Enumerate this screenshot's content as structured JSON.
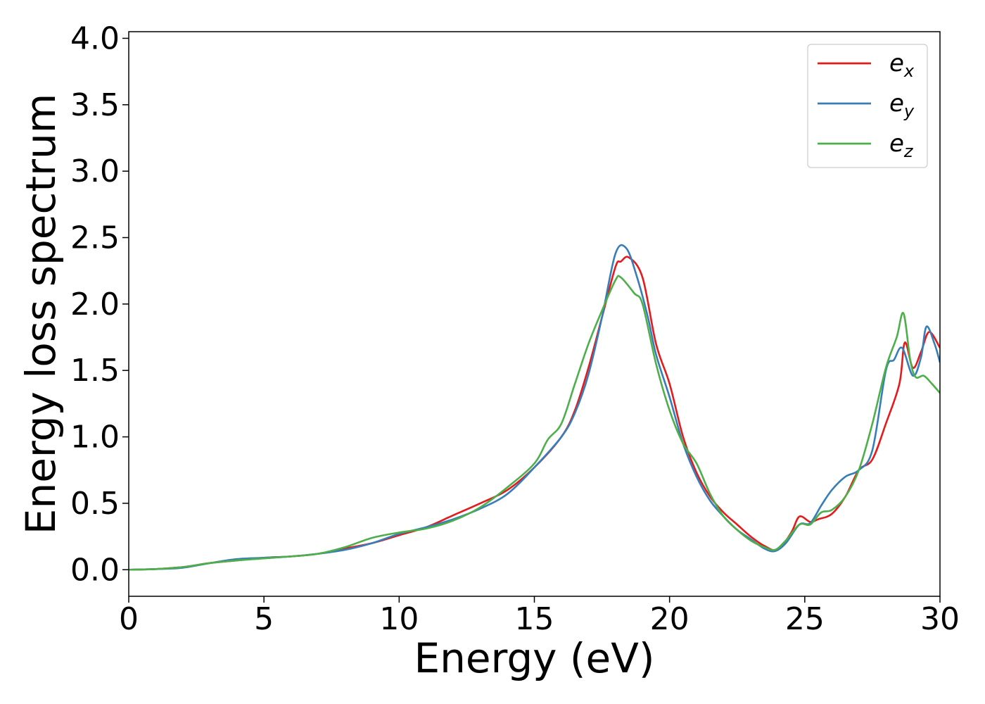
{
  "chart_data": {
    "type": "line",
    "xlabel": "Energy (eV)",
    "ylabel": "Energy loss spectrum",
    "xlim": [
      0,
      30
    ],
    "ylim": [
      -0.2,
      4.05
    ],
    "xticks": [
      0,
      5,
      10,
      15,
      20,
      25,
      30
    ],
    "yticks": [
      0.0,
      0.5,
      1.0,
      1.5,
      2.0,
      2.5,
      3.0,
      3.5,
      4.0
    ],
    "xtick_labels": [
      "0",
      "5",
      "10",
      "15",
      "20",
      "25",
      "30"
    ],
    "ytick_labels": [
      "0.0",
      "0.5",
      "1.0",
      "1.5",
      "2.0",
      "2.5",
      "3.0",
      "3.5",
      "4.0"
    ],
    "grid": false,
    "legend_position": "top-right",
    "series": [
      {
        "name": "e",
        "subscript": "x",
        "color": "#e41a1c",
        "points": [
          [
            0,
            0
          ],
          [
            1,
            0.005
          ],
          [
            2,
            0.02
          ],
          [
            3,
            0.05
          ],
          [
            4,
            0.07
          ],
          [
            5,
            0.09
          ],
          [
            6,
            0.1
          ],
          [
            7,
            0.12
          ],
          [
            8,
            0.16
          ],
          [
            9,
            0.2
          ],
          [
            10,
            0.26
          ],
          [
            11,
            0.32
          ],
          [
            12,
            0.41
          ],
          [
            13,
            0.5
          ],
          [
            14,
            0.6
          ],
          [
            15,
            0.77
          ],
          [
            16,
            1.0
          ],
          [
            16.5,
            1.2
          ],
          [
            17,
            1.52
          ],
          [
            17.5,
            1.9
          ],
          [
            18,
            2.28
          ],
          [
            18.2,
            2.32
          ],
          [
            18.5,
            2.35
          ],
          [
            19,
            2.2
          ],
          [
            19.5,
            1.7
          ],
          [
            20,
            1.4
          ],
          [
            20.5,
            1.0
          ],
          [
            21,
            0.73
          ],
          [
            21.5,
            0.55
          ],
          [
            22,
            0.43
          ],
          [
            22.5,
            0.34
          ],
          [
            23,
            0.25
          ],
          [
            23.5,
            0.18
          ],
          [
            24,
            0.15
          ],
          [
            24.5,
            0.28
          ],
          [
            24.8,
            0.4
          ],
          [
            25.2,
            0.36
          ],
          [
            25.5,
            0.38
          ],
          [
            26,
            0.42
          ],
          [
            26.5,
            0.55
          ],
          [
            27,
            0.75
          ],
          [
            27.5,
            0.83
          ],
          [
            28,
            1.1
          ],
          [
            28.5,
            1.4
          ],
          [
            28.7,
            1.71
          ],
          [
            29,
            1.52
          ],
          [
            29.3,
            1.64
          ],
          [
            29.6,
            1.79
          ],
          [
            30,
            1.67
          ]
        ]
      },
      {
        "name": "e",
        "subscript": "y",
        "color": "#377eb8",
        "points": [
          [
            0,
            0
          ],
          [
            1,
            0.005
          ],
          [
            2,
            0.015
          ],
          [
            3,
            0.05
          ],
          [
            4,
            0.08
          ],
          [
            5,
            0.09
          ],
          [
            6,
            0.1
          ],
          [
            7,
            0.12
          ],
          [
            8,
            0.15
          ],
          [
            9,
            0.2
          ],
          [
            10,
            0.27
          ],
          [
            11,
            0.32
          ],
          [
            12,
            0.38
          ],
          [
            13,
            0.46
          ],
          [
            14,
            0.57
          ],
          [
            15,
            0.77
          ],
          [
            16,
            1.0
          ],
          [
            16.5,
            1.18
          ],
          [
            17,
            1.47
          ],
          [
            17.5,
            1.9
          ],
          [
            18,
            2.38
          ],
          [
            18.4,
            2.42
          ],
          [
            18.8,
            2.2
          ],
          [
            19.2,
            1.9
          ],
          [
            19.5,
            1.62
          ],
          [
            20,
            1.3
          ],
          [
            20.5,
            0.95
          ],
          [
            21,
            0.7
          ],
          [
            21.5,
            0.52
          ],
          [
            22,
            0.4
          ],
          [
            22.5,
            0.3
          ],
          [
            23,
            0.23
          ],
          [
            23.5,
            0.16
          ],
          [
            23.9,
            0.14
          ],
          [
            24.3,
            0.2
          ],
          [
            24.8,
            0.34
          ],
          [
            25.2,
            0.35
          ],
          [
            25.6,
            0.48
          ],
          [
            26,
            0.6
          ],
          [
            26.5,
            0.7
          ],
          [
            27,
            0.75
          ],
          [
            27.5,
            0.9
          ],
          [
            28,
            1.5
          ],
          [
            28.3,
            1.58
          ],
          [
            28.6,
            1.67
          ],
          [
            29,
            1.46
          ],
          [
            29.3,
            1.6
          ],
          [
            29.5,
            1.83
          ],
          [
            29.8,
            1.7
          ],
          [
            30,
            1.56
          ]
        ]
      },
      {
        "name": "e",
        "subscript": "z",
        "color": "#4daf4a",
        "points": [
          [
            0,
            0
          ],
          [
            1,
            0.005
          ],
          [
            2,
            0.02
          ],
          [
            3,
            0.05
          ],
          [
            4,
            0.07
          ],
          [
            5,
            0.085
          ],
          [
            6,
            0.1
          ],
          [
            7,
            0.12
          ],
          [
            8,
            0.17
          ],
          [
            9,
            0.24
          ],
          [
            10,
            0.28
          ],
          [
            11,
            0.31
          ],
          [
            12,
            0.37
          ],
          [
            13,
            0.47
          ],
          [
            14,
            0.62
          ],
          [
            15,
            0.8
          ],
          [
            15.5,
            0.98
          ],
          [
            16,
            1.1
          ],
          [
            16.5,
            1.4
          ],
          [
            17,
            1.7
          ],
          [
            17.5,
            1.95
          ],
          [
            18,
            2.18
          ],
          [
            18.2,
            2.2
          ],
          [
            18.7,
            2.08
          ],
          [
            19,
            2.0
          ],
          [
            19.5,
            1.55
          ],
          [
            20,
            1.2
          ],
          [
            20.5,
            0.95
          ],
          [
            21,
            0.8
          ],
          [
            21.5,
            0.57
          ],
          [
            22,
            0.4
          ],
          [
            22.5,
            0.3
          ],
          [
            23,
            0.22
          ],
          [
            23.5,
            0.17
          ],
          [
            23.9,
            0.15
          ],
          [
            24.3,
            0.22
          ],
          [
            24.8,
            0.34
          ],
          [
            25.2,
            0.34
          ],
          [
            25.6,
            0.43
          ],
          [
            26,
            0.45
          ],
          [
            26.5,
            0.55
          ],
          [
            27,
            0.75
          ],
          [
            27.5,
            1.1
          ],
          [
            28,
            1.52
          ],
          [
            28.4,
            1.75
          ],
          [
            28.65,
            1.93
          ],
          [
            28.9,
            1.58
          ],
          [
            29.1,
            1.45
          ],
          [
            29.4,
            1.46
          ],
          [
            29.7,
            1.4
          ],
          [
            30,
            1.33
          ]
        ]
      }
    ]
  }
}
